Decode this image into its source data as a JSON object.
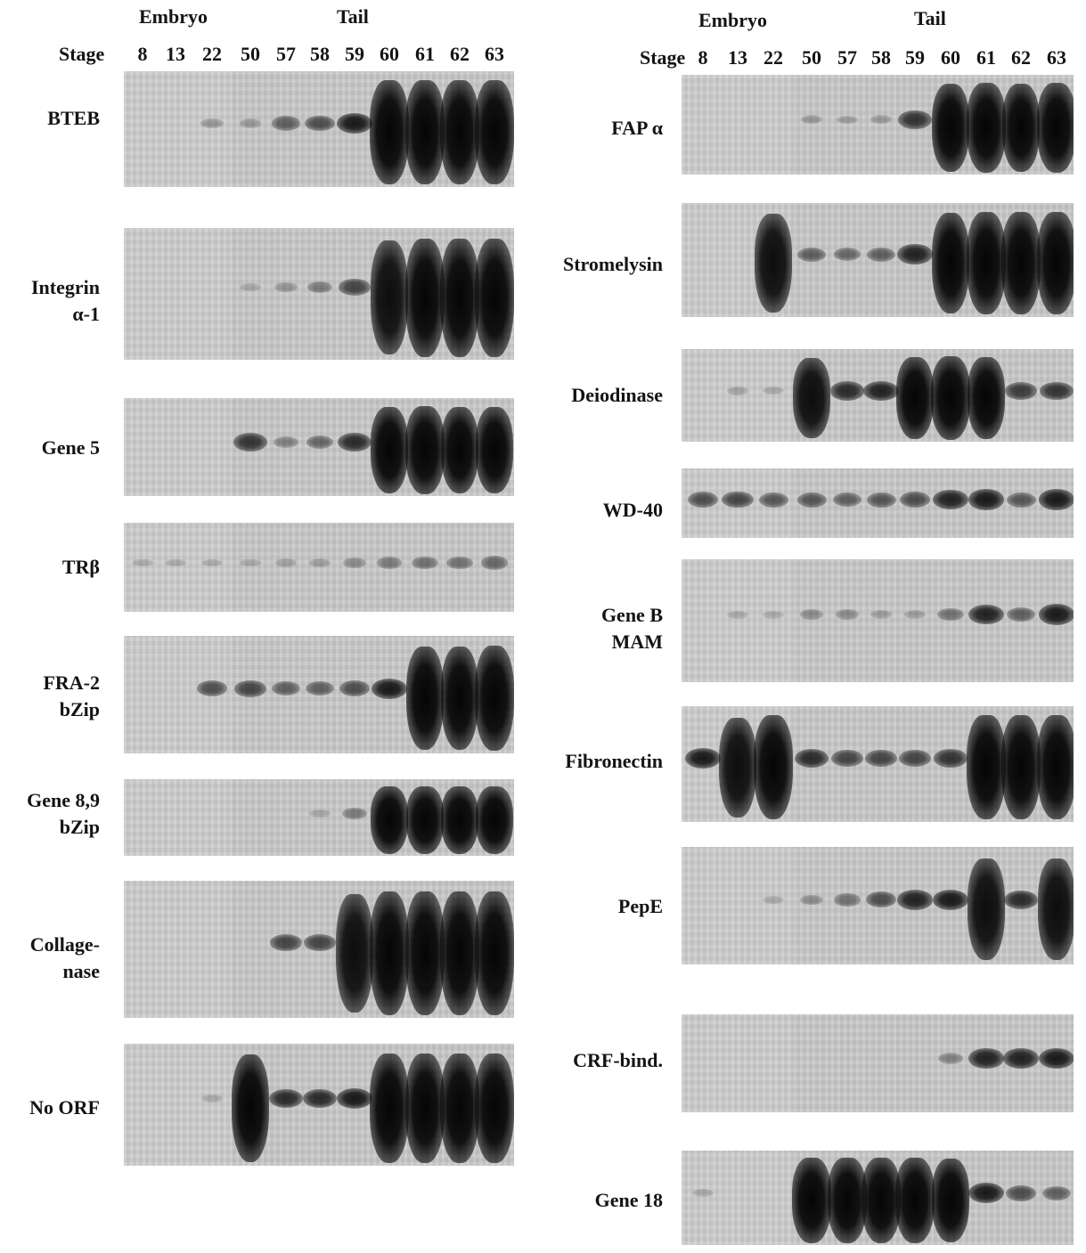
{
  "left": {
    "group_embryo": "Embryo",
    "group_tail": "Tail",
    "stage_label": "Stage",
    "stages": [
      "8",
      "13",
      "22",
      "50",
      "57",
      "58",
      "59",
      "60",
      "61",
      "62",
      "63"
    ]
  },
  "right": {
    "group_embryo": "Embryo",
    "group_tail": "Tail",
    "stage_label": "Stage",
    "stages": [
      "8",
      "13",
      "22",
      "50",
      "57",
      "58",
      "59",
      "60",
      "61",
      "62",
      "63"
    ]
  },
  "panels_left": [
    {
      "id": "bteb",
      "lines": [
        "BTEB"
      ],
      "intensity": [
        0.02,
        0.02,
        0.15,
        0.12,
        0.45,
        0.55,
        0.85,
        1,
        1,
        1,
        1
      ]
    },
    {
      "id": "integrin",
      "lines": [
        "Integrin",
        "α-1"
      ],
      "intensity": [
        0.02,
        0.02,
        0.03,
        0.05,
        0.15,
        0.3,
        0.6,
        0.9,
        1,
        1,
        1
      ]
    },
    {
      "id": "gene5",
      "lines": [
        "Gene 5"
      ],
      "intensity": [
        0.02,
        0.02,
        0.03,
        0.7,
        0.25,
        0.4,
        0.75,
        0.95,
        1,
        0.95,
        0.95
      ]
    },
    {
      "id": "trb",
      "lines": [
        "TRβ"
      ],
      "intensity": [
        0.05,
        0.05,
        0.05,
        0.05,
        0.08,
        0.1,
        0.2,
        0.3,
        0.35,
        0.35,
        0.4
      ]
    },
    {
      "id": "fra2",
      "lines": [
        "FRA-2",
        "bZip"
      ],
      "intensity": [
        0.02,
        0.02,
        0.55,
        0.6,
        0.45,
        0.45,
        0.55,
        0.85,
        0.95,
        0.95,
        1
      ]
    },
    {
      "id": "gene89",
      "lines": [
        "Gene 8,9",
        "bZip"
      ],
      "intensity": [
        0.02,
        0.02,
        0.02,
        0.03,
        0.03,
        0.05,
        0.3,
        0.95,
        0.95,
        0.95,
        0.95
      ]
    },
    {
      "id": "collagenase",
      "lines": [
        "Collage-",
        "nase"
      ],
      "intensity": [
        0.02,
        0.02,
        0.02,
        0.03,
        0.6,
        0.6,
        0.9,
        1,
        1,
        1,
        1
      ]
    },
    {
      "id": "noorf",
      "lines": [
        "No ORF"
      ],
      "intensity": [
        0.02,
        0.02,
        0.05,
        0.95,
        0.75,
        0.75,
        0.85,
        1,
        1,
        1,
        1
      ]
    }
  ],
  "panels_right": [
    {
      "id": "fap",
      "lines": [
        "FAP α"
      ],
      "intensity": [
        0.02,
        0.02,
        0.02,
        0.12,
        0.1,
        0.12,
        0.7,
        0.95,
        1,
        0.95,
        1
      ]
    },
    {
      "id": "stromelysin",
      "lines": [
        "Stromelysin"
      ],
      "intensity": [
        0.02,
        0.02,
        0.9,
        0.45,
        0.4,
        0.45,
        0.8,
        0.95,
        1,
        1,
        1
      ]
    },
    {
      "id": "deiodinase",
      "lines": [
        "Deiodinase"
      ],
      "intensity": [
        0.02,
        0.08,
        0.06,
        0.9,
        0.75,
        0.8,
        0.95,
        1,
        0.95,
        0.65,
        0.7
      ]
    },
    {
      "id": "wd40",
      "lines": [
        "WD-40"
      ],
      "intensity": [
        0.55,
        0.6,
        0.5,
        0.5,
        0.45,
        0.5,
        0.55,
        0.8,
        0.85,
        0.5,
        0.85
      ]
    },
    {
      "id": "geneb",
      "lines": [
        "Gene B",
        "MAM"
      ],
      "intensity": [
        0.02,
        0.05,
        0.05,
        0.2,
        0.2,
        0.1,
        0.1,
        0.35,
        0.8,
        0.45,
        0.85
      ]
    },
    {
      "id": "fibronectin",
      "lines": [
        "Fibronectin"
      ],
      "intensity": [
        0.85,
        0.9,
        1,
        0.75,
        0.6,
        0.6,
        0.6,
        0.7,
        1,
        1,
        1
      ]
    },
    {
      "id": "pepe",
      "lines": [
        "PepE"
      ],
      "intensity": [
        0.02,
        0.02,
        0.05,
        0.2,
        0.35,
        0.55,
        0.8,
        0.85,
        0.9,
        0.75,
        0.9
      ]
    },
    {
      "id": "crf",
      "lines": [
        "CRF-bind."
      ],
      "intensity": [
        0.02,
        0.02,
        0.02,
        0.02,
        0.02,
        0.02,
        0.02,
        0.25,
        0.8,
        0.8,
        0.85
      ]
    },
    {
      "id": "gene18",
      "lines": [
        "Gene 18"
      ],
      "intensity": [
        0.05,
        0.02,
        0.02,
        1,
        1,
        1,
        1,
        0.95,
        0.85,
        0.55,
        0.45
      ]
    }
  ]
}
